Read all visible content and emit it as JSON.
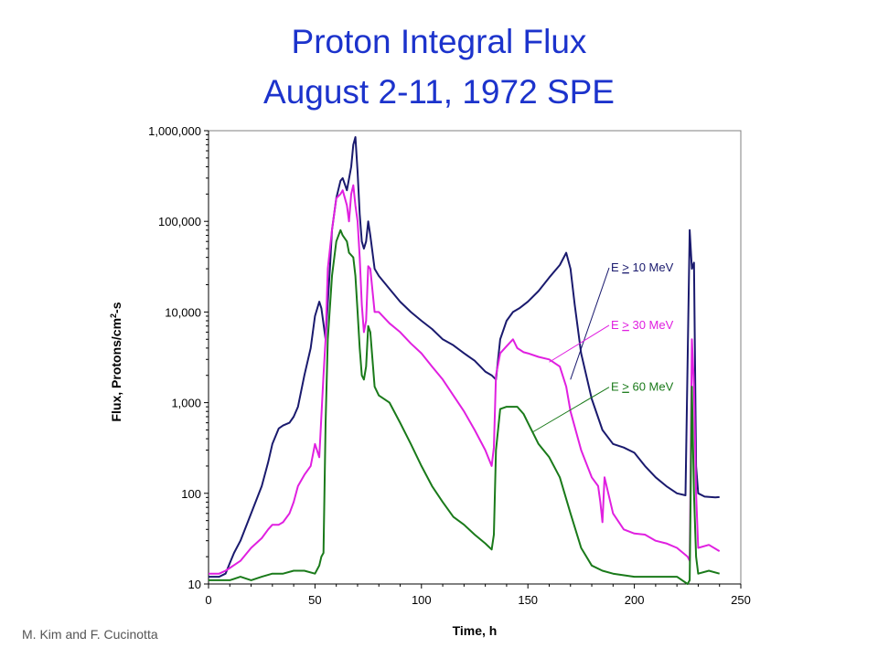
{
  "title": {
    "line1": "Proton Integral Flux",
    "line2": "August 2-11, 1972 SPE"
  },
  "credit": "M. Kim and F. Cucinotta",
  "colors": {
    "title": "#1c33cc",
    "e10": "#1a1a6e",
    "e30": "#e020e0",
    "e60": "#1a7a1a"
  },
  "chart_data": {
    "type": "line",
    "title": "Proton Integral Flux August 2-11, 1972 SPE",
    "xlabel": "Time, h",
    "ylabel_main": "Flux, Protons/cm",
    "ylabel_sup": "2",
    "ylabel_tail": "-s",
    "xlim": [
      0,
      250
    ],
    "ylim": [
      10,
      1000000
    ],
    "yscale": "log",
    "grid": false,
    "x_ticks": [
      0,
      50,
      100,
      150,
      200,
      250
    ],
    "x_tick_labels": [
      "0",
      "50",
      "100",
      "150",
      "200",
      "250"
    ],
    "y_ticks": [
      10,
      100,
      1000,
      10000,
      100000,
      1000000
    ],
    "y_tick_labels": [
      "10",
      "100",
      "1,000",
      "10,000",
      "100,000",
      "1,000,000"
    ],
    "legend_placement": "right, annotated with arrows",
    "series": [
      {
        "name": "E > 10 MeV",
        "label_prefix": "E ",
        "label_op": ">",
        "label_suffix": " 10 MeV",
        "color": "#1a1a6e",
        "annotation_point": [
          170,
          1800
        ],
        "label_anchor": [
          189,
          28000
        ],
        "x": [
          0,
          5,
          8,
          10,
          12,
          15,
          20,
          25,
          28,
          30,
          33,
          35,
          38,
          40,
          42,
          45,
          48,
          50,
          52,
          53,
          55,
          57,
          58,
          60,
          62,
          63,
          65,
          67,
          68,
          69,
          70,
          71,
          72,
          73,
          74,
          75,
          76,
          78,
          80,
          85,
          90,
          95,
          100,
          105,
          110,
          115,
          120,
          125,
          130,
          133,
          135,
          137,
          140,
          143,
          146,
          150,
          155,
          160,
          165,
          168,
          170,
          172,
          175,
          180,
          185,
          190,
          195,
          200,
          205,
          210,
          215,
          220,
          224,
          226,
          227,
          228,
          229,
          230,
          233,
          238,
          240
        ],
        "y": [
          12,
          12,
          13,
          17,
          22,
          30,
          60,
          120,
          220,
          350,
          520,
          560,
          600,
          700,
          900,
          2000,
          4000,
          9000,
          13000,
          11000,
          5000,
          30000,
          80000,
          180000,
          280000,
          300000,
          220000,
          400000,
          700000,
          850000,
          350000,
          120000,
          60000,
          50000,
          60000,
          100000,
          70000,
          30000,
          25000,
          18000,
          13000,
          10000,
          8000,
          6500,
          5000,
          4300,
          3500,
          2900,
          2200,
          2000,
          1800,
          5000,
          8000,
          10000,
          11000,
          13000,
          17000,
          24000,
          33000,
          45000,
          30000,
          12000,
          3500,
          1100,
          500,
          350,
          320,
          280,
          200,
          150,
          120,
          100,
          95,
          80000,
          30000,
          35000,
          200,
          100,
          92,
          90,
          91
        ]
      },
      {
        "name": "E > 30 MeV",
        "label_prefix": "E ",
        "label_op": ">",
        "label_suffix": " 30 MeV",
        "color": "#e020e0",
        "annotation_point": [
          160,
          2800
        ],
        "label_anchor": [
          189,
          6500
        ],
        "x": [
          0,
          5,
          8,
          10,
          15,
          20,
          25,
          28,
          30,
          33,
          35,
          38,
          40,
          42,
          45,
          48,
          50,
          52,
          54,
          55,
          56,
          58,
          60,
          62,
          63,
          65,
          66,
          67,
          68,
          69,
          70,
          71,
          72,
          73,
          74,
          75,
          76,
          78,
          80,
          85,
          90,
          95,
          100,
          105,
          110,
          115,
          120,
          125,
          130,
          133,
          134,
          135,
          137,
          140,
          143,
          145,
          148,
          150,
          155,
          160,
          165,
          168,
          170,
          175,
          180,
          183,
          184,
          185,
          186,
          190,
          195,
          200,
          205,
          210,
          215,
          220,
          225,
          226,
          227,
          228,
          229,
          230,
          235,
          240
        ],
        "y": [
          13,
          13,
          14,
          15,
          18,
          25,
          32,
          40,
          45,
          45,
          48,
          60,
          80,
          120,
          160,
          200,
          350,
          250,
          2000,
          5000,
          30000,
          80000,
          180000,
          200000,
          220000,
          150000,
          100000,
          200000,
          250000,
          150000,
          100000,
          40000,
          12000,
          6000,
          8000,
          32000,
          30000,
          10000,
          10000,
          7500,
          6000,
          4500,
          3500,
          2500,
          1800,
          1200,
          800,
          500,
          300,
          200,
          320,
          2000,
          3500,
          4200,
          5000,
          4000,
          3600,
          3500,
          3200,
          3000,
          2500,
          1500,
          800,
          300,
          150,
          120,
          80,
          48,
          150,
          60,
          40,
          36,
          35,
          30,
          28,
          25,
          20,
          18,
          5000,
          1500,
          100,
          25,
          27,
          23
        ]
      },
      {
        "name": "E > 60 MeV",
        "label_prefix": "E ",
        "label_op": ">",
        "label_suffix": " 60 MeV",
        "color": "#1a7a1a",
        "annotation_point": [
          152,
          470
        ],
        "label_anchor": [
          189,
          1350
        ],
        "x": [
          0,
          10,
          15,
          20,
          25,
          30,
          35,
          40,
          45,
          50,
          52,
          53,
          54,
          55,
          56,
          58,
          60,
          62,
          63,
          65,
          66,
          68,
          69,
          70,
          71,
          72,
          73,
          74,
          75,
          76,
          78,
          80,
          85,
          90,
          95,
          100,
          105,
          110,
          115,
          120,
          125,
          130,
          133,
          134,
          135,
          137,
          140,
          145,
          148,
          150,
          155,
          160,
          165,
          170,
          175,
          180,
          185,
          190,
          200,
          210,
          220,
          225,
          226,
          227,
          228,
          229,
          230,
          235,
          240
        ],
        "y": [
          11,
          11,
          12,
          11,
          12,
          13,
          13,
          14,
          14,
          13,
          16,
          20,
          22,
          600,
          5000,
          25000,
          60000,
          80000,
          70000,
          60000,
          45000,
          40000,
          25000,
          10000,
          4000,
          2000,
          1800,
          2500,
          7000,
          6000,
          1500,
          1200,
          1000,
          600,
          350,
          200,
          120,
          80,
          55,
          45,
          35,
          28,
          24,
          35,
          300,
          850,
          900,
          900,
          750,
          600,
          350,
          250,
          150,
          60,
          25,
          16,
          14,
          13,
          12,
          12,
          12,
          10,
          11,
          1500,
          100,
          20,
          13,
          14,
          13
        ]
      }
    ]
  }
}
